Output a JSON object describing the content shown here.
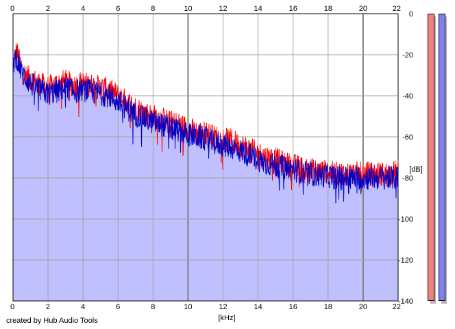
{
  "footer": {
    "credit": "created by Hub Audio Tools"
  },
  "chart_data": {
    "type": "area",
    "title": "",
    "xlabel": "[kHz]",
    "ylabel": "[dB]",
    "xlim": [
      0,
      22
    ],
    "ylim": [
      -140,
      0
    ],
    "x_ticks": [
      0,
      2,
      4,
      6,
      8,
      10,
      12,
      14,
      16,
      18,
      20,
      22
    ],
    "x_tick_labels": [
      "0",
      "2",
      "4",
      "6",
      "8",
      "10",
      "12",
      "14",
      "16",
      "18",
      "20",
      "22"
    ],
    "y_ticks": [
      0,
      -20,
      -40,
      -60,
      -80,
      -100,
      -120,
      -140
    ],
    "y_tick_labels": [
      "0",
      "-20",
      "-40",
      "-60",
      "-80",
      "-100",
      "-120",
      "-140"
    ],
    "grid": true,
    "x_axis_labels_top": true,
    "x_axis_labels_bottom": true,
    "y_axis_labels_side": "right",
    "series": [
      {
        "color": "#ff0000",
        "x": [
          0,
          0.2,
          0.5,
          1,
          1.5,
          2,
          2.5,
          3,
          3.5,
          4,
          4.5,
          5,
          5.5,
          6,
          6.5,
          7,
          7.5,
          8,
          8.5,
          9,
          9.5,
          10,
          10.5,
          11,
          11.5,
          12,
          12.5,
          13,
          13.5,
          14,
          14.5,
          15,
          15.5,
          16,
          16.5,
          17,
          17.5,
          18,
          18.5,
          19,
          19.5,
          20,
          20.5,
          21,
          21.5,
          22
        ],
        "values": [
          -25,
          -18,
          -28,
          -32,
          -34,
          -36,
          -34,
          -33,
          -35,
          -34,
          -35,
          -36,
          -37,
          -40,
          -43,
          -46,
          -48,
          -50,
          -51,
          -53,
          -54,
          -56,
          -58,
          -58,
          -60,
          -61,
          -62,
          -64,
          -66,
          -68,
          -70,
          -71,
          -73,
          -74,
          -75,
          -76,
          -77,
          -77,
          -78,
          -78,
          -78,
          -78,
          -78,
          -78,
          -78,
          -77
        ]
      },
      {
        "color": "#0000c8",
        "x": [
          0,
          0.2,
          0.5,
          1,
          1.5,
          2,
          2.5,
          3,
          3.5,
          4,
          4.5,
          5,
          5.5,
          6,
          6.5,
          7,
          7.5,
          8,
          8.5,
          9,
          9.5,
          10,
          10.5,
          11,
          11.5,
          12,
          12.5,
          13,
          13.5,
          14,
          14.5,
          15,
          15.5,
          16,
          16.5,
          17,
          17.5,
          18,
          18.5,
          19,
          19.5,
          20,
          20.5,
          21,
          21.5,
          22
        ],
        "values": [
          -24,
          -21,
          -29,
          -34,
          -37,
          -39,
          -38,
          -36,
          -38,
          -37,
          -38,
          -39,
          -40,
          -43,
          -46,
          -49,
          -51,
          -53,
          -54,
          -56,
          -57,
          -59,
          -60,
          -61,
          -63,
          -64,
          -65,
          -67,
          -69,
          -71,
          -73,
          -74,
          -75,
          -76,
          -77,
          -78,
          -79,
          -79,
          -80,
          -80,
          -80,
          -80,
          -80,
          -80,
          -80,
          -80
        ]
      }
    ],
    "fill_color": "#c0c0ff",
    "level_meters": [
      {
        "color": "#f08080",
        "level_db": 0
      },
      {
        "color": "#8080f0",
        "level_db": 0
      }
    ]
  }
}
